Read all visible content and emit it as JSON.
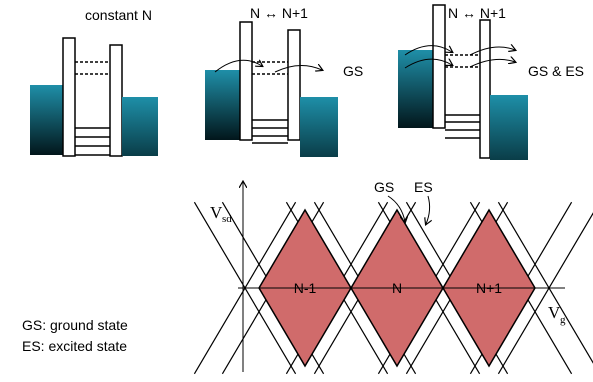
{
  "panels": [
    {
      "caption": "constant N"
    },
    {
      "caption": "N ↔ N+1",
      "note": "GS"
    },
    {
      "caption": "N ↔ N+1",
      "note": "GS & ES"
    }
  ],
  "plot": {
    "y_axis": {
      "symbol": "V",
      "subscript": "sd"
    },
    "x_axis": {
      "symbol": "V",
      "subscript": "g"
    },
    "diamonds": [
      "N-1",
      "N",
      "N+1"
    ],
    "callouts": [
      "GS",
      "ES"
    ]
  },
  "legend": [
    "GS: ground state",
    "ES: excited state"
  ]
}
